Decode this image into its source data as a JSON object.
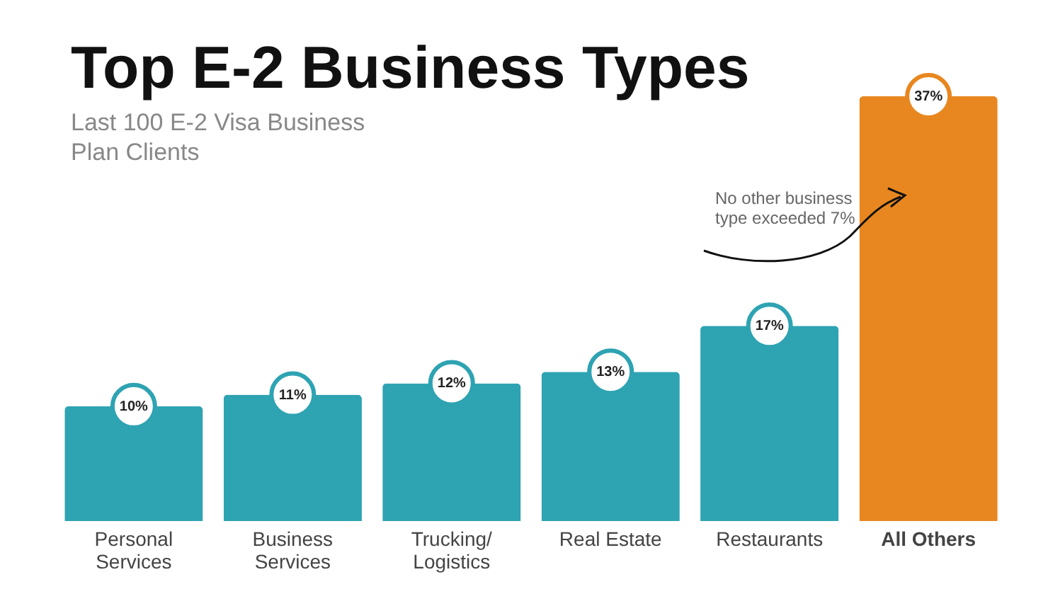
{
  "chart_data": {
    "type": "bar",
    "title": "Top E-2 Business Types",
    "subtitle": "Last 100 E-2 Visa Business Plan Clients",
    "categories": [
      "Personal Services",
      "Business Services",
      "Trucking/ Logistics",
      "Real Estate",
      "Restaurants",
      "All Others"
    ],
    "values": [
      10,
      11,
      12,
      13,
      17,
      37
    ],
    "value_labels": [
      "10%",
      "11%",
      "12%",
      "13%",
      "17%",
      "37%"
    ],
    "colors": [
      "#2ea3b2",
      "#2ea3b2",
      "#2ea3b2",
      "#2ea3b2",
      "#2ea3b2",
      "#e8871f"
    ],
    "annotations": [
      "No other business type exceeded 7%"
    ]
  }
}
